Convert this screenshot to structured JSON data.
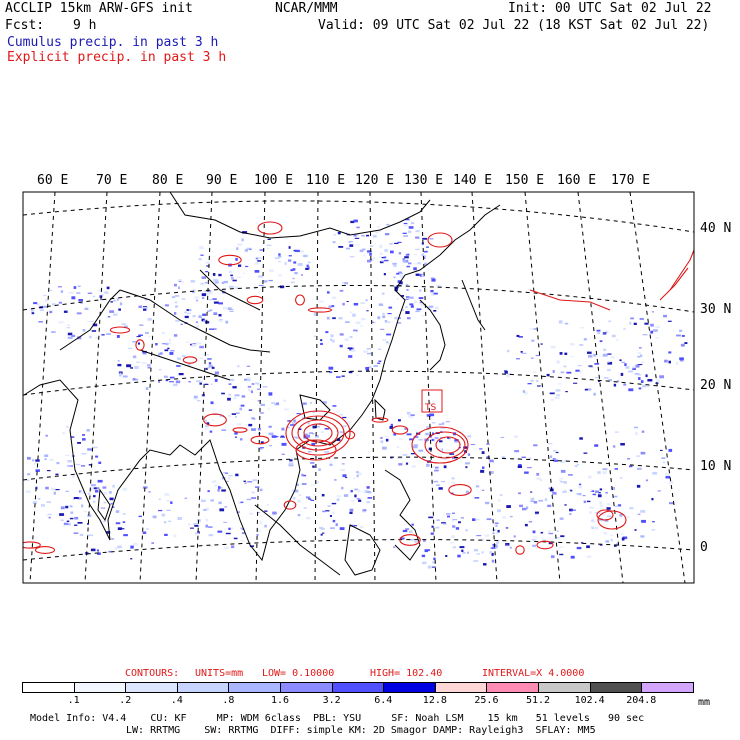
{
  "header": {
    "title_left": "ACCLIP 15km ARW-GFS init",
    "center": "NCAR/MMM",
    "init": "Init: 00 UTC Sat 02 Jul 22",
    "fcst_label": "Fcst:",
    "fcst_value": "9 h",
    "valid": "Valid: 09 UTC Sat 02 Jul 22 (18 KST Sat 02 Jul 22)",
    "legend_cumulus": "Cumulus precip. in past 3 h",
    "legend_explicit": "Explicit precip. in past 3 h"
  },
  "colors": {
    "cumulus": "#1a1ab4",
    "explicit": "#e01818",
    "grid_blue": "#2020ff",
    "land": "#000000"
  },
  "map": {
    "lon_labels": [
      "60 E",
      "70 E",
      "80 E",
      "90 E",
      "100 E",
      "110 E",
      "120 E",
      "130 E",
      "140 E",
      "150 E",
      "160 E",
      "170 E"
    ],
    "lat_labels": [
      "40 N",
      "30 N",
      "20 N",
      "10 N",
      "0"
    ],
    "storm_label": "TS"
  },
  "contours": {
    "label": "CONTOURS:",
    "units": "UNITS=mm",
    "low": "LOW= 0.10000",
    "high": "HIGH= 102.40",
    "interval": "INTERVAL=X 4.0000"
  },
  "colorbar": {
    "labels": [
      ".1",
      ".2",
      ".4",
      ".8",
      "1.6",
      "3.2",
      "6.4",
      "12.8",
      "25.6",
      "51.2",
      "102.4",
      "204.8"
    ],
    "units": "mm",
    "colors": [
      "#ffffff",
      "#f2f6ff",
      "#dde6ff",
      "#c6d4ff",
      "#aab6ff",
      "#8c8cff",
      "#5050ff",
      "#0000e0",
      "#ffd6d6",
      "#ff8cb4",
      "#c8c8c8",
      "#505050",
      "#d2a6ff"
    ]
  },
  "footer": {
    "line1": "Model Info: V4.4    CU: KF     MP: WDM 6class  PBL: YSU     SF: Noah LSM    15 km   51 levels   90 sec",
    "line2": "LW: RRTMG    SW: RRTMG  DIFF: simple KM: 2D Smagor DAMP: Rayleigh3  SFLAY: MM5"
  }
}
